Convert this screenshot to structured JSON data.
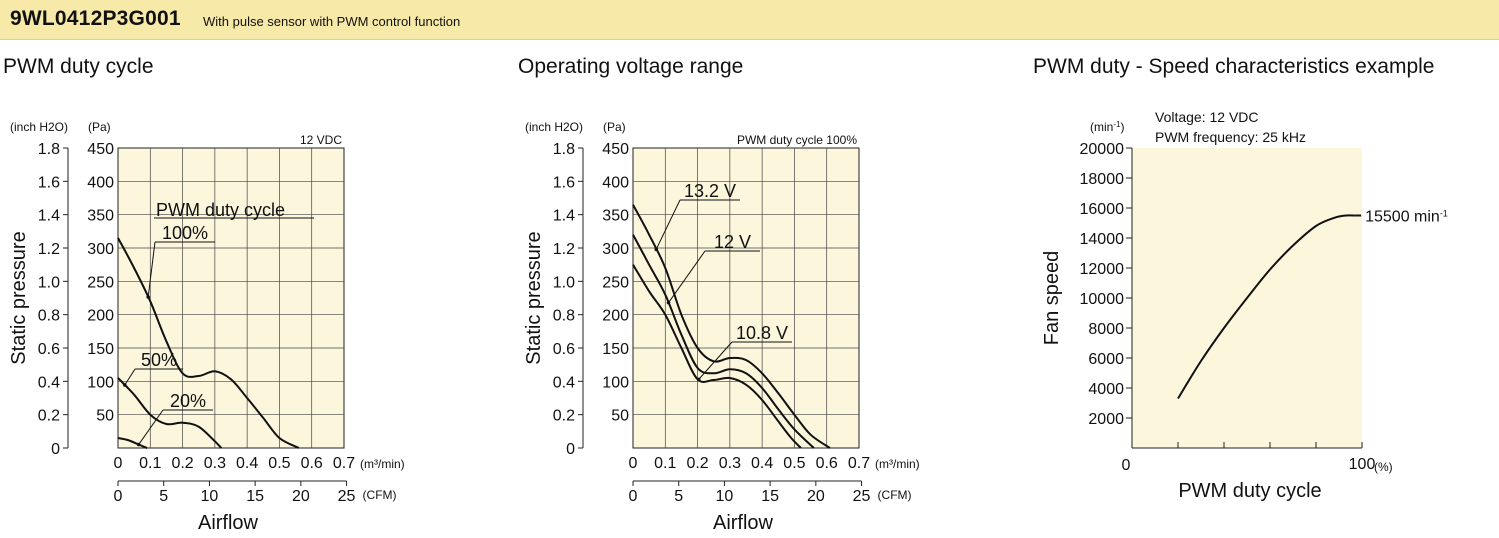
{
  "header": {
    "model": "9WL0412P3G001",
    "description": "With pulse sensor with PWM control function"
  },
  "colors": {
    "header_band": "#f7e9a7",
    "plot_background": "#fbf6dc",
    "curve": "#111111"
  },
  "chart_data": [
    {
      "type": "line",
      "title": "PWM duty cycle",
      "condition": "12 VDC",
      "ylabel": "Static pressure",
      "xlabel": "Airflow",
      "y_units": [
        "(inch H2O)",
        "(Pa)"
      ],
      "x_units": [
        "(m³/min)",
        "(CFM)"
      ],
      "y_inch_ticks": [
        "1.8",
        "1.6",
        "1.4",
        "1.2",
        "1.0",
        "0.8",
        "0.6",
        "0.4",
        "0.2",
        "0"
      ],
      "y_pa_ticks": [
        "450",
        "400",
        "350",
        "300",
        "250",
        "200",
        "150",
        "100",
        "50"
      ],
      "x_m3_ticks": [
        "0",
        "0.1",
        "0.2",
        "0.3",
        "0.4",
        "0.5",
        "0.6",
        "0.7"
      ],
      "x_cfm_ticks": [
        "0",
        "5",
        "10",
        "15",
        "20",
        "25"
      ],
      "xlim": [
        0,
        0.7
      ],
      "ylim": [
        0,
        450
      ],
      "legend_title": "PWM duty cycle",
      "series": [
        {
          "name": "100%",
          "points": [
            [
              0,
              315
            ],
            [
              0.05,
              270
            ],
            [
              0.1,
              220
            ],
            [
              0.15,
              160
            ],
            [
              0.2,
              112
            ],
            [
              0.25,
              108
            ],
            [
              0.3,
              115
            ],
            [
              0.35,
              103
            ],
            [
              0.4,
              75
            ],
            [
              0.45,
              45
            ],
            [
              0.5,
              15
            ],
            [
              0.56,
              0
            ]
          ]
        },
        {
          "name": "50%",
          "points": [
            [
              0,
              105
            ],
            [
              0.05,
              80
            ],
            [
              0.1,
              50
            ],
            [
              0.15,
              36
            ],
            [
              0.2,
              38
            ],
            [
              0.25,
              32
            ],
            [
              0.3,
              10
            ],
            [
              0.32,
              0
            ]
          ]
        },
        {
          "name": "20%",
          "points": [
            [
              0,
              15
            ],
            [
              0.03,
              12
            ],
            [
              0.06,
              6
            ],
            [
              0.08,
              2
            ],
            [
              0.09,
              0
            ]
          ]
        }
      ]
    },
    {
      "type": "line",
      "title": "Operating voltage range",
      "condition": "PWM duty cycle 100%",
      "ylabel": "Static pressure",
      "xlabel": "Airflow",
      "y_units": [
        "(inch H2O)",
        "(Pa)"
      ],
      "x_units": [
        "(m³/min)",
        "(CFM)"
      ],
      "y_inch_ticks": [
        "1.8",
        "1.6",
        "1.4",
        "1.2",
        "1.0",
        "0.8",
        "0.6",
        "0.4",
        "0.2",
        "0"
      ],
      "y_pa_ticks": [
        "450",
        "400",
        "350",
        "300",
        "250",
        "200",
        "150",
        "100",
        "50"
      ],
      "x_m3_ticks": [
        "0",
        "0.1",
        "0.2",
        "0.3",
        "0.4",
        "0.5",
        "0.6",
        "0.7"
      ],
      "x_cfm_ticks": [
        "0",
        "5",
        "10",
        "15",
        "20",
        "25"
      ],
      "xlim": [
        0,
        0.7
      ],
      "ylim": [
        0,
        450
      ],
      "series": [
        {
          "name": "13.2 V",
          "points": [
            [
              0,
              365
            ],
            [
              0.05,
              320
            ],
            [
              0.1,
              270
            ],
            [
              0.15,
              200
            ],
            [
              0.2,
              150
            ],
            [
              0.25,
              130
            ],
            [
              0.3,
              135
            ],
            [
              0.35,
              132
            ],
            [
              0.4,
              112
            ],
            [
              0.45,
              82
            ],
            [
              0.5,
              50
            ],
            [
              0.55,
              20
            ],
            [
              0.61,
              0
            ]
          ]
        },
        {
          "name": "12 V",
          "points": [
            [
              0,
              320
            ],
            [
              0.05,
              275
            ],
            [
              0.1,
              230
            ],
            [
              0.15,
              170
            ],
            [
              0.2,
              120
            ],
            [
              0.25,
              112
            ],
            [
              0.3,
              118
            ],
            [
              0.35,
              112
            ],
            [
              0.4,
              90
            ],
            [
              0.45,
              58
            ],
            [
              0.5,
              28
            ],
            [
              0.56,
              0
            ]
          ]
        },
        {
          "name": "10.8 V",
          "points": [
            [
              0,
              275
            ],
            [
              0.05,
              235
            ],
            [
              0.1,
              200
            ],
            [
              0.15,
              150
            ],
            [
              0.2,
              103
            ],
            [
              0.25,
              102
            ],
            [
              0.3,
              105
            ],
            [
              0.35,
              95
            ],
            [
              0.4,
              72
            ],
            [
              0.45,
              40
            ],
            [
              0.49,
              15
            ],
            [
              0.52,
              0
            ]
          ]
        }
      ]
    },
    {
      "type": "line",
      "title": "PWM duty - Speed characteristics example",
      "conditions": [
        "Voltage: 12 VDC",
        "PWM frequency: 25 kHz"
      ],
      "ylabel": "Fan speed",
      "xlabel": "PWM duty cycle",
      "y_unit": "(min-1)",
      "x_unit": "(%)",
      "y_ticks": [
        "20000",
        "18000",
        "16000",
        "14000",
        "12000",
        "10000",
        "8000",
        "6000",
        "4000",
        "2000"
      ],
      "x_ticks": [
        "0",
        "100"
      ],
      "xlim": [
        0,
        100
      ],
      "ylim": [
        0,
        20000
      ],
      "end_label": "15500 min-1",
      "series": [
        {
          "name": "",
          "points": [
            [
              20,
              3300
            ],
            [
              30,
              5800
            ],
            [
              40,
              8000
            ],
            [
              50,
              10000
            ],
            [
              60,
              11900
            ],
            [
              70,
              13500
            ],
            [
              80,
              14800
            ],
            [
              88,
              15350
            ],
            [
              93,
              15500
            ],
            [
              97,
              15500
            ]
          ]
        }
      ]
    }
  ]
}
